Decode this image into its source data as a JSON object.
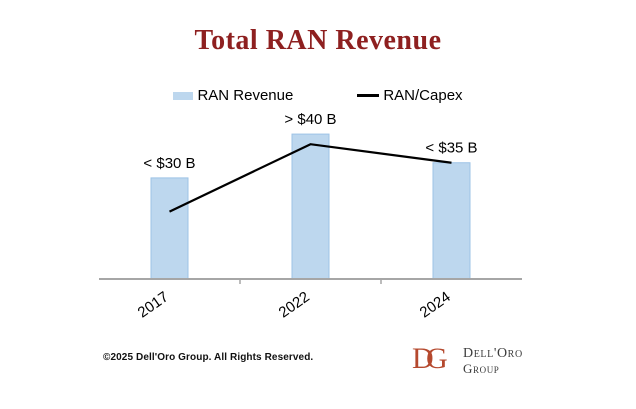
{
  "title": "Total RAN Revenue",
  "title_color": "#8E2020",
  "chart_data": {
    "type": "bar",
    "title": "Total RAN Revenue",
    "categories": [
      "2017",
      "2022",
      "2024"
    ],
    "series": [
      {
        "name": "RAN Revenue",
        "type": "bar",
        "color": "#BDD7EE",
        "border_color": "#9DC3E6",
        "values": [
          30,
          43,
          34.5
        ],
        "point_labels": [
          "< $30 B",
          "> $40 B",
          "< $35 B"
        ]
      },
      {
        "name": "RAN/Capex",
        "type": "line",
        "color": "#000000",
        "values": [
          20,
          40,
          34.5
        ]
      }
    ],
    "xlabel": "",
    "ylabel": "",
    "ylim": [
      0,
      50
    ],
    "grid": false,
    "legend_position": "top",
    "axis_color": "#A6A6A6"
  },
  "footer": {
    "copyright": "©2025 Dell'Oro Group. All Rights Reserved.",
    "logo": {
      "monogram": "DG",
      "monogram_color": "#B5492E",
      "name_line1": "Dell'Oro",
      "name_line2": "Group"
    }
  }
}
